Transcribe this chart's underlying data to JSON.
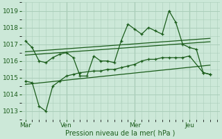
{
  "bg_color": "#cce8d8",
  "grid_color": "#aaceba",
  "line_color": "#1a5c1a",
  "marker_color": "#1a5c1a",
  "ylim": [
    1012.5,
    1019.5
  ],
  "yticks": [
    1013,
    1014,
    1015,
    1016,
    1017,
    1018,
    1019
  ],
  "xlabel": "Pression niveau de la mer( hPa )",
  "day_labels": [
    "Mar",
    "Ven",
    "Mer",
    "Jeu"
  ],
  "day_positions": [
    0,
    3,
    8,
    12
  ],
  "xlim": [
    -0.3,
    14.2
  ],
  "series1_x": [
    0,
    0.5,
    1,
    1.5,
    2,
    2.5,
    3,
    3.5,
    4,
    4.5,
    5,
    5.5,
    6,
    6.5,
    7,
    7.5,
    8,
    8.5,
    9,
    9.5,
    10,
    10.5,
    11,
    11.5,
    12,
    12.5,
    13,
    13.5
  ],
  "series1_y": [
    1017.2,
    1016.8,
    1016.0,
    1015.9,
    1016.2,
    1016.4,
    1016.5,
    1016.2,
    1015.1,
    1015.1,
    1016.3,
    1016.0,
    1016.0,
    1015.9,
    1017.2,
    1018.2,
    1017.9,
    1017.6,
    1018.0,
    1017.8,
    1017.6,
    1019.0,
    1018.3,
    1017.0,
    1016.8,
    1016.7,
    1015.3,
    1015.2
  ],
  "series2_x": [
    0,
    0.5,
    1,
    1.5,
    2,
    2.5,
    3,
    3.5,
    4,
    5,
    5.5,
    6,
    6.5,
    7,
    7.5,
    8,
    8.5,
    9,
    9.5,
    10,
    10.5,
    11,
    11.5,
    12,
    13,
    13.5
  ],
  "series2_y": [
    1014.8,
    1014.7,
    1013.3,
    1013.0,
    1014.5,
    1014.8,
    1015.1,
    1015.2,
    1015.3,
    1015.4,
    1015.4,
    1015.5,
    1015.5,
    1015.6,
    1015.7,
    1015.8,
    1016.0,
    1016.1,
    1016.1,
    1016.2,
    1016.2,
    1016.2,
    1016.2,
    1016.3,
    1015.3,
    1015.2
  ],
  "trend1_x": [
    0,
    13.5
  ],
  "trend1_y": [
    1016.55,
    1017.35
  ],
  "trend2_x": [
    0,
    13.5
  ],
  "trend2_y": [
    1016.35,
    1017.15
  ],
  "trend3_x": [
    0,
    13.5
  ],
  "trend3_y": [
    1014.6,
    1015.75
  ]
}
